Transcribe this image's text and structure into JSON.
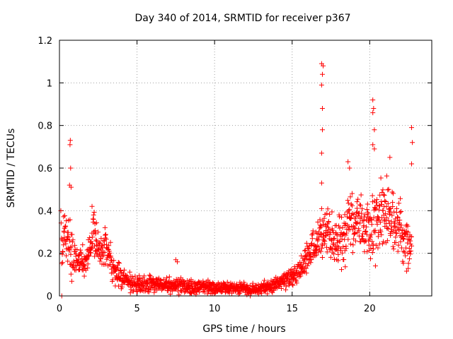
{
  "chart_data": {
    "type": "scatter",
    "title": "Day 340 of 2014, SRMTID for receiver p367",
    "xlabel": "GPS time / hours",
    "ylabel": "SRMTID / TECUs",
    "xlim": [
      0,
      24
    ],
    "ylim": [
      0,
      1.2
    ],
    "xticks": [
      0,
      5,
      10,
      15,
      20
    ],
    "xtick_labels": [
      "0",
      "5",
      "10",
      "15",
      "20"
    ],
    "yticks": [
      0,
      0.2,
      0.4,
      0.6,
      0.8,
      1,
      1.2
    ],
    "ytick_labels": [
      "0",
      "0.2",
      "0.4",
      "0.6",
      "0.8",
      "1",
      "1.2"
    ],
    "grid": true,
    "marker": "+",
    "color": "#ff0000",
    "series": [
      {
        "name": "SRMTID",
        "envelope": [
          {
            "t": 0.1,
            "center": 0.2,
            "spread": 0.2
          },
          {
            "t": 0.3,
            "center": 0.32,
            "spread": 0.08
          },
          {
            "t": 0.6,
            "center": 0.25,
            "spread": 0.15
          },
          {
            "t": 0.9,
            "center": 0.2,
            "spread": 0.12
          },
          {
            "t": 1.3,
            "center": 0.15,
            "spread": 0.06
          },
          {
            "t": 1.8,
            "center": 0.17,
            "spread": 0.07
          },
          {
            "t": 2.2,
            "center": 0.3,
            "spread": 0.12
          },
          {
            "t": 2.6,
            "center": 0.2,
            "spread": 0.08
          },
          {
            "t": 3.0,
            "center": 0.22,
            "spread": 0.1
          },
          {
            "t": 3.5,
            "center": 0.12,
            "spread": 0.07
          },
          {
            "t": 4.0,
            "center": 0.08,
            "spread": 0.05
          },
          {
            "t": 5.0,
            "center": 0.05,
            "spread": 0.04
          },
          {
            "t": 7.0,
            "center": 0.05,
            "spread": 0.04
          },
          {
            "t": 10.0,
            "center": 0.04,
            "spread": 0.03
          },
          {
            "t": 12.0,
            "center": 0.03,
            "spread": 0.03
          },
          {
            "t": 13.5,
            "center": 0.04,
            "spread": 0.03
          },
          {
            "t": 14.5,
            "center": 0.07,
            "spread": 0.04
          },
          {
            "t": 15.5,
            "center": 0.12,
            "spread": 0.06
          },
          {
            "t": 16.3,
            "center": 0.22,
            "spread": 0.08
          },
          {
            "t": 17.0,
            "center": 0.3,
            "spread": 0.12
          },
          {
            "t": 18.0,
            "center": 0.25,
            "spread": 0.12
          },
          {
            "t": 19.0,
            "center": 0.35,
            "spread": 0.15
          },
          {
            "t": 20.0,
            "center": 0.3,
            "spread": 0.15
          },
          {
            "t": 21.0,
            "center": 0.4,
            "spread": 0.18
          },
          {
            "t": 22.0,
            "center": 0.3,
            "spread": 0.15
          },
          {
            "t": 22.7,
            "center": 0.22,
            "spread": 0.1
          }
        ],
        "spikes": [
          {
            "x": 0.7,
            "y": 0.73
          },
          {
            "x": 0.68,
            "y": 0.71
          },
          {
            "x": 0.72,
            "y": 0.6
          },
          {
            "x": 0.65,
            "y": 0.52
          },
          {
            "x": 0.75,
            "y": 0.51
          },
          {
            "x": 2.1,
            "y": 0.42
          },
          {
            "x": 2.2,
            "y": 0.38
          },
          {
            "x": 7.5,
            "y": 0.17
          },
          {
            "x": 7.6,
            "y": 0.16
          },
          {
            "x": 16.9,
            "y": 1.09
          },
          {
            "x": 17.0,
            "y": 1.08
          },
          {
            "x": 16.95,
            "y": 1.04
          },
          {
            "x": 16.9,
            "y": 0.99
          },
          {
            "x": 16.95,
            "y": 0.88
          },
          {
            "x": 16.95,
            "y": 0.78
          },
          {
            "x": 16.9,
            "y": 0.67
          },
          {
            "x": 16.9,
            "y": 0.53
          },
          {
            "x": 16.9,
            "y": 0.41
          },
          {
            "x": 20.2,
            "y": 0.92
          },
          {
            "x": 20.25,
            "y": 0.88
          },
          {
            "x": 20.2,
            "y": 0.86
          },
          {
            "x": 20.3,
            "y": 0.78
          },
          {
            "x": 20.2,
            "y": 0.71
          },
          {
            "x": 20.3,
            "y": 0.69
          },
          {
            "x": 18.6,
            "y": 0.63
          },
          {
            "x": 18.7,
            "y": 0.6
          },
          {
            "x": 21.3,
            "y": 0.65
          },
          {
            "x": 22.7,
            "y": 0.79
          },
          {
            "x": 22.75,
            "y": 0.72
          },
          {
            "x": 22.7,
            "y": 0.62
          },
          {
            "x": 12.2,
            "y": 0.01
          },
          {
            "x": 12.3,
            "y": 0.0
          },
          {
            "x": 13.4,
            "y": 0.01
          },
          {
            "x": 0.15,
            "y": 0.0
          }
        ]
      }
    ]
  }
}
